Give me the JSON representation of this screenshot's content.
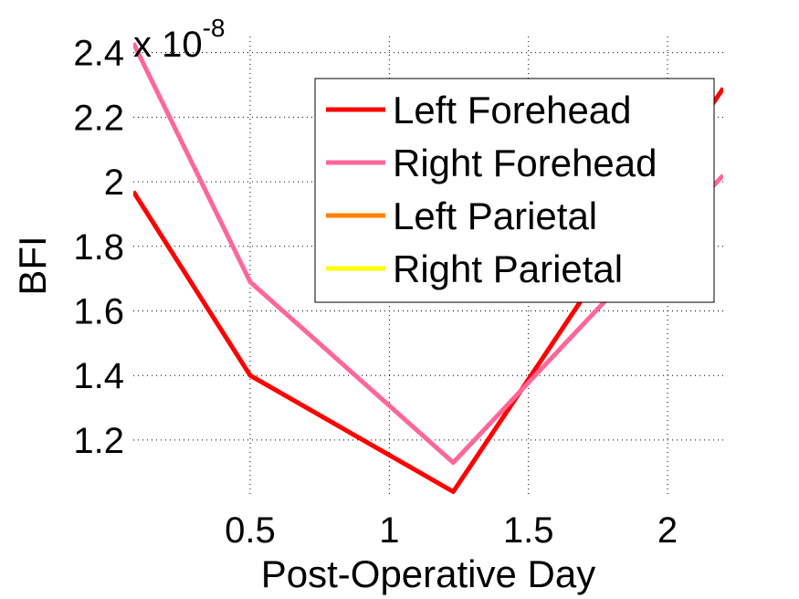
{
  "chart_data": {
    "type": "line",
    "xlabel": "Post-Operative Day",
    "ylabel": "BFI",
    "scale_label": {
      "base": "x 10",
      "exponent": "-8"
    },
    "xlim": [
      0.08,
      2.2
    ],
    "ylim": [
      1.03,
      2.45
    ],
    "x_ticks": [
      {
        "value": 0.5,
        "label": "0.5"
      },
      {
        "value": 1,
        "label": "1"
      },
      {
        "value": 1.5,
        "label": "1.5"
      },
      {
        "value": 2,
        "label": "2"
      }
    ],
    "y_ticks": [
      {
        "value": 1.2,
        "label": "1.2"
      },
      {
        "value": 1.4,
        "label": "1.4"
      },
      {
        "value": 1.6,
        "label": "1.6"
      },
      {
        "value": 1.8,
        "label": "1.8"
      },
      {
        "value": 2.0,
        "label": "2"
      },
      {
        "value": 2.2,
        "label": "2.2"
      },
      {
        "value": 2.4,
        "label": "2.4"
      }
    ],
    "grid": true,
    "legend_position": "top-right",
    "series": [
      {
        "name": "Left Forehead",
        "color": "#ff0000",
        "x": [
          0.08,
          0.5,
          1.23,
          2.2
        ],
        "y": [
          1.97,
          1.4,
          1.04,
          2.29
        ]
      },
      {
        "name": "Right Forehead",
        "color": "#ff6699",
        "x": [
          0.08,
          0.5,
          1.23,
          2.2
        ],
        "y": [
          2.43,
          1.69,
          1.13,
          2.02
        ]
      },
      {
        "name": "Left Parietal",
        "color": "#ff8000",
        "x": [],
        "y": []
      },
      {
        "name": "Right Parietal",
        "color": "#ffff00",
        "x": [],
        "y": []
      }
    ]
  }
}
